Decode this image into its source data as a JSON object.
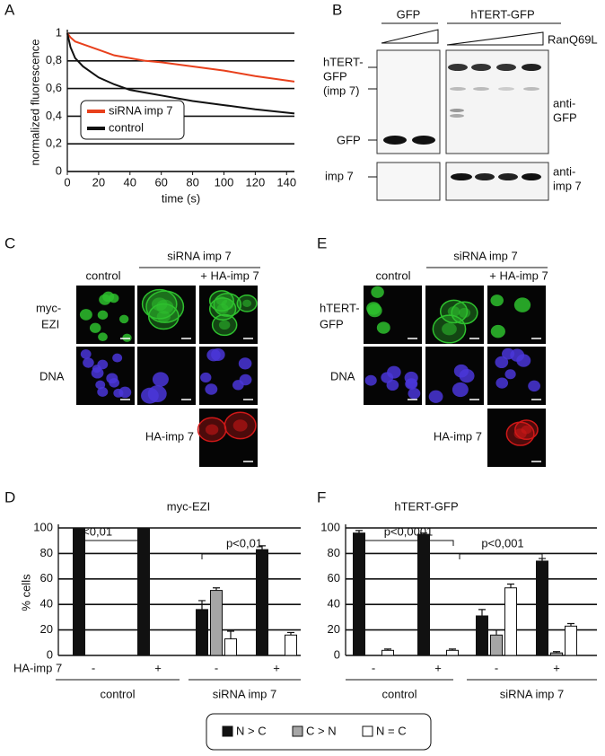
{
  "panel_labels": [
    "A",
    "B",
    "C",
    "D",
    "E",
    "F"
  ],
  "blot": {
    "lane_groups": [
      "GFP",
      "hTERT-GFP"
    ],
    "treatment": "RanQ69L",
    "left_labels": [
      [
        "hTERT-",
        "GFP",
        "(imp 7)"
      ],
      [
        "GFP"
      ],
      [
        "imp 7"
      ]
    ],
    "right_labels": [
      [
        "anti-",
        "GFP"
      ],
      [
        "anti-",
        "imp 7"
      ]
    ]
  },
  "micrographs": [
    {
      "header": "siRNA imp 7",
      "columns": [
        "control",
        "+ HA-imp 7"
      ],
      "rows": [
        [
          "myc-",
          "EZI"
        ],
        [
          "DNA"
        ],
        [
          "HA-imp 7"
        ]
      ]
    },
    {
      "header": "siRNA imp 7",
      "columns": [
        "control",
        "+ HA-imp 7"
      ],
      "rows": [
        [
          "hTERT-",
          "GFP"
        ],
        [
          "DNA"
        ],
        [
          "HA-imp 7"
        ]
      ]
    }
  ],
  "chart_data": [
    {
      "type": "line",
      "xlabel": "time (s)",
      "ylabel": "normalized fluorescence",
      "x": [
        0,
        2,
        5,
        10,
        20,
        30,
        40,
        50,
        60,
        80,
        100,
        120,
        145
      ],
      "series": [
        {
          "name": "siRNA imp 7",
          "color": "#e8401c",
          "values": [
            1,
            0.97,
            0.94,
            0.92,
            0.88,
            0.84,
            0.82,
            0.8,
            0.79,
            0.76,
            0.73,
            0.69,
            0.65
          ]
        },
        {
          "name": "control",
          "color": "#111111",
          "values": [
            1,
            0.9,
            0.82,
            0.76,
            0.68,
            0.63,
            0.59,
            0.57,
            0.55,
            0.51,
            0.48,
            0.45,
            0.42
          ]
        }
      ],
      "xlim": [
        0,
        145
      ],
      "xticks": [
        0,
        20,
        40,
        60,
        80,
        100,
        120,
        140
      ],
      "ylim": [
        0,
        1
      ],
      "yticks": [
        0,
        {
          "value": 0.2,
          "label": "0,2"
        },
        {
          "value": 0.4,
          "label": "0,4"
        },
        {
          "value": 0.6,
          "label": "0,6"
        },
        {
          "value": 0.8,
          "label": "0,8"
        },
        1
      ],
      "grid": true,
      "legend": "center left"
    },
    {
      "type": "bar",
      "title": "myc-EZI",
      "ylabel": "% cells",
      "category_row_label": "HA-imp 7",
      "categories": [
        "-",
        "+",
        "-",
        "+"
      ],
      "groups": [
        "control",
        "siRNA imp 7"
      ],
      "annotations": [
        "p<0,01",
        "p<0,01"
      ],
      "series": [
        {
          "name": "N > C",
          "color": "#111111",
          "values": [
            100,
            100,
            36,
            83
          ],
          "errors": [
            null,
            null,
            7,
            3
          ]
        },
        {
          "name": "C > N",
          "color": "#a6a6a6",
          "values": [
            0,
            0,
            51,
            0
          ],
          "errors": [
            null,
            null,
            2,
            null
          ]
        },
        {
          "name": "N = C",
          "color": "#ffffff",
          "values": [
            0,
            0,
            13,
            16
          ],
          "errors": [
            null,
            null,
            6,
            2
          ]
        }
      ],
      "ylim": [
        0,
        100
      ],
      "yticks": [
        0,
        20,
        40,
        60,
        80,
        100
      ],
      "grid": true,
      "legend": "below"
    },
    {
      "type": "bar",
      "title": "hTERT-GFP",
      "categories": [
        "-",
        "+",
        "-",
        "+"
      ],
      "groups": [
        "control",
        "siRNA imp 7"
      ],
      "annotations": [
        "p<0,0001",
        "p<0,001"
      ],
      "series": [
        {
          "name": "N > C",
          "color": "#111111",
          "values": [
            96,
            95,
            31,
            74
          ],
          "errors": [
            2,
            1,
            5,
            2
          ]
        },
        {
          "name": "C > N",
          "color": "#a6a6a6",
          "values": [
            0,
            0,
            16,
            2
          ],
          "errors": [
            null,
            null,
            4,
            1
          ]
        },
        {
          "name": "N = C",
          "color": "#ffffff",
          "values": [
            4,
            4,
            53,
            23
          ],
          "errors": [
            1,
            1,
            3,
            2
          ]
        }
      ],
      "ylim": [
        0,
        100
      ],
      "yticks": [
        0,
        20,
        40,
        60,
        80,
        100
      ],
      "grid": true
    }
  ]
}
